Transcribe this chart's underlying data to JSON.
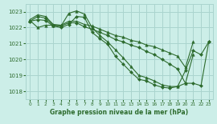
{
  "background_color": "#cceee8",
  "grid_color": "#aad4ce",
  "line_color": "#2d6b2d",
  "title": "Graphe pression niveau de la mer (hPa)",
  "xlim": [
    -0.5,
    23.5
  ],
  "ylim": [
    1017.5,
    1023.5
  ],
  "yticks": [
    1018,
    1019,
    1020,
    1021,
    1022,
    1023
  ],
  "xticks": [
    0,
    1,
    2,
    3,
    4,
    5,
    6,
    7,
    8,
    9,
    10,
    11,
    12,
    13,
    14,
    15,
    16,
    17,
    18,
    19,
    20,
    21,
    22,
    23
  ],
  "series": [
    {
      "x": [
        0,
        1,
        2,
        3,
        4,
        5,
        6,
        7,
        8,
        9,
        10,
        11,
        12,
        13,
        14,
        15,
        16,
        17,
        18,
        19,
        20,
        21
      ],
      "y": [
        1022.5,
        1022.8,
        1022.7,
        1022.2,
        1022.15,
        1022.4,
        1022.4,
        1022.2,
        1022.1,
        1021.9,
        1021.7,
        1021.5,
        1021.4,
        1021.2,
        1021.1,
        1020.9,
        1020.8,
        1020.6,
        1020.4,
        1020.2,
        1019.5,
        1021.1
      ],
      "marker": "^",
      "ms": 2.5
    },
    {
      "x": [
        0,
        1,
        2,
        3,
        4,
        5,
        6,
        7,
        8,
        9,
        10,
        11,
        12,
        13,
        14,
        15,
        16,
        17,
        18,
        19,
        20,
        21,
        22,
        23
      ],
      "y": [
        1022.4,
        1022.7,
        1022.6,
        1022.15,
        1022.1,
        1022.3,
        1022.3,
        1022.05,
        1021.9,
        1021.7,
        1021.5,
        1021.25,
        1021.1,
        1020.9,
        1020.75,
        1020.5,
        1020.3,
        1020.0,
        1019.7,
        1019.4,
        1018.5,
        1018.5,
        1018.35,
        1021.1
      ],
      "marker": "D",
      "ms": 2.0
    },
    {
      "x": [
        0,
        1,
        2,
        3,
        4,
        5,
        6,
        7,
        8,
        9,
        10,
        11,
        12,
        13,
        14,
        15,
        16,
        17,
        18,
        19,
        20,
        21
      ],
      "y": [
        1022.45,
        1022.0,
        1022.15,
        1022.15,
        1022.1,
        1022.9,
        1023.05,
        1022.85,
        1022.0,
        1021.5,
        1021.1,
        1020.6,
        1020.1,
        1019.55,
        1019.0,
        1018.85,
        1018.65,
        1018.4,
        1018.3,
        1018.3,
        1018.5,
        1020.3
      ],
      "marker": "^",
      "ms": 2.5
    },
    {
      "x": [
        0,
        1,
        2,
        3,
        4,
        5,
        6,
        7,
        8,
        9,
        10,
        11,
        12,
        13,
        14,
        15,
        16,
        17,
        18,
        19,
        20,
        21,
        22,
        23
      ],
      "y": [
        1022.4,
        1022.5,
        1022.45,
        1022.1,
        1022.0,
        1022.2,
        1022.7,
        1022.65,
        1021.7,
        1021.3,
        1020.95,
        1020.2,
        1019.7,
        1019.2,
        1018.75,
        1018.65,
        1018.4,
        1018.25,
        1018.2,
        1018.3,
        1019.3,
        1020.55,
        1020.3,
        1021.1
      ],
      "marker": "D",
      "ms": 2.0
    }
  ]
}
